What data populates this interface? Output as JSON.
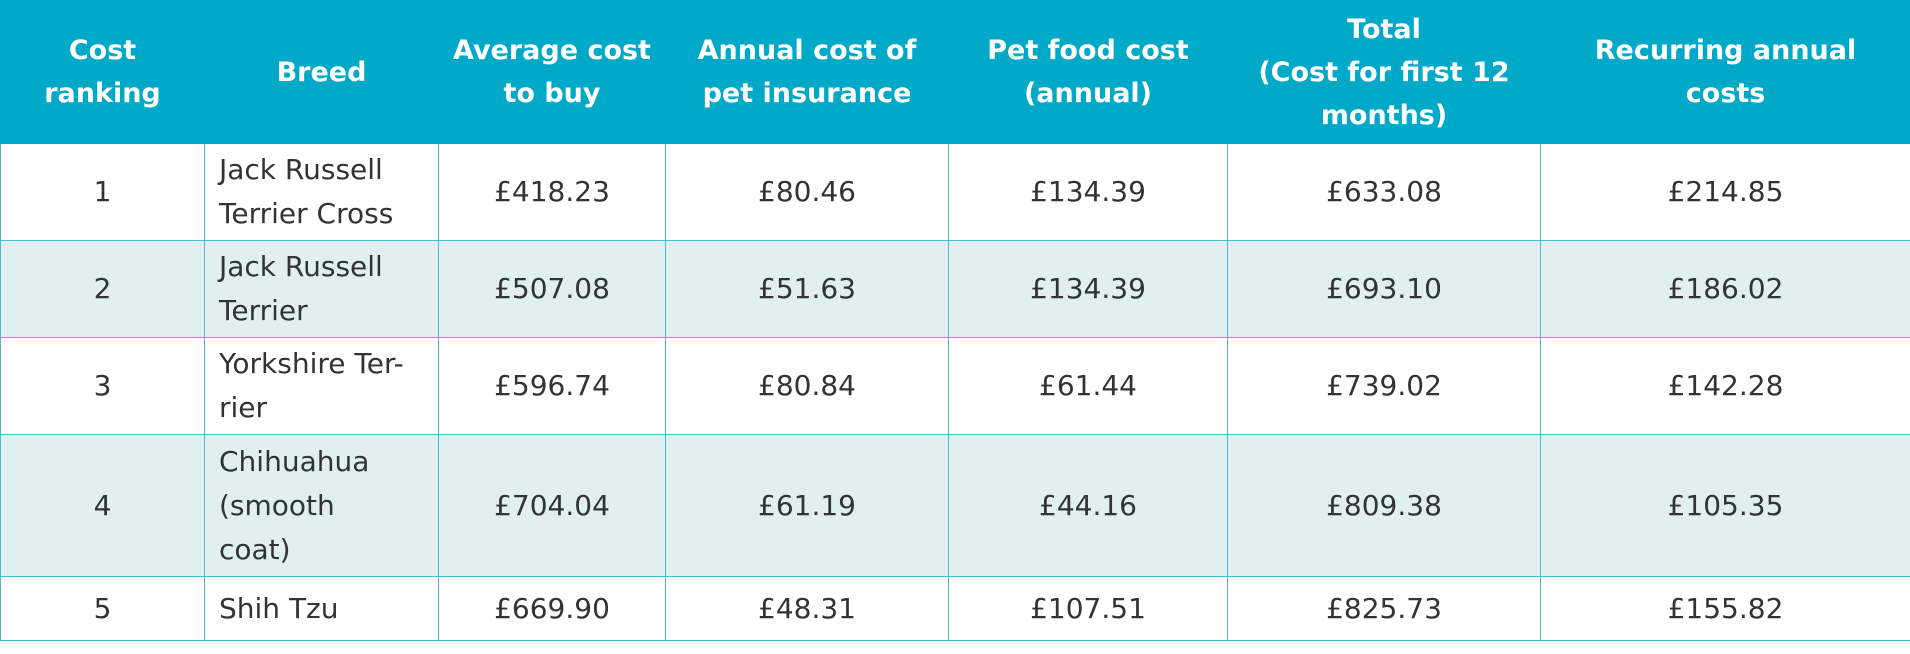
{
  "table": {
    "columns": [
      "Cost\nranking",
      "Breed",
      "Average cost\nto buy",
      "Annual cost of\npet insurance",
      "Pet food cost\n(annual)",
      "Total\n(Cost for first 12\nmonths)",
      "Recurring annual costs"
    ],
    "rows": [
      {
        "rank": "1",
        "breed": "Jack Russell\nTerrier Cross",
        "buy": "£418.23",
        "insurance": "£80.46",
        "food": "£134.39",
        "total": "£633.08",
        "recurring": "£214.85"
      },
      {
        "rank": "2",
        "breed": "Jack Russell\nTerrier",
        "buy": "£507.08",
        "insurance": "£51.63",
        "food": "£134.39",
        "total": "£693.10",
        "recurring": "£186.02"
      },
      {
        "rank": "3",
        "breed": "Yorkshire Ter-\nrier",
        "buy": "£596.74",
        "insurance": "£80.84",
        "food": "£61.44",
        "total": "£739.02",
        "recurring": "£142.28"
      },
      {
        "rank": "4",
        "breed": "Chihuahua\n(smooth\ncoat)",
        "buy": "£704.04",
        "insurance": "£61.19",
        "food": "£44.16",
        "total": "£809.38",
        "recurring": "£105.35"
      },
      {
        "rank": "5",
        "breed": "Shih Tzu",
        "buy": "£669.90",
        "insurance": "£48.31",
        "food": "£107.51",
        "total": "£825.73",
        "recurring": "£155.82"
      }
    ]
  },
  "colors": {
    "header_bg": "#00a9c8",
    "header_text": "#ffffff",
    "stripe_bg": "#e0f0f1",
    "border": "#4fb8cd",
    "body_text": "#333333"
  }
}
